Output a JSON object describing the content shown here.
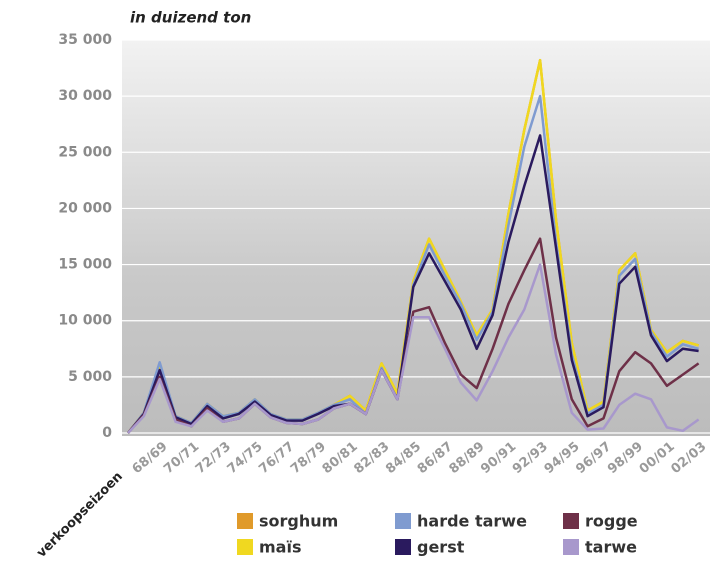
{
  "chart_data": {
    "type": "line",
    "title": "in duizend ton",
    "x_label": "verkoopseizoen",
    "categories": [
      null,
      null,
      "68/69",
      null,
      "70/71",
      null,
      "72/73",
      null,
      "74/75",
      null,
      "76/77",
      null,
      "78/79",
      null,
      "80/81",
      null,
      "82/83",
      null,
      "84/85",
      null,
      "86/87",
      null,
      "88/89",
      null,
      "90/91",
      null,
      "92/93",
      null,
      "94/95",
      null,
      "96/97",
      null,
      "98/99",
      null,
      "00/01",
      null,
      "02/03"
    ],
    "series": [
      {
        "name": "sorghum",
        "color": "#e09a2a",
        "values": [
          0,
          1800,
          6000,
          1500,
          900,
          2600,
          1500,
          1800,
          3000,
          1700,
          1200,
          1200,
          1800,
          2500,
          3300,
          2000,
          6200,
          3500,
          13500,
          17300,
          14500,
          11700,
          8700,
          11000,
          19500,
          27000,
          33200,
          19000,
          8000,
          2000,
          2800,
          14500,
          16000,
          9200,
          7200,
          8200,
          7800
        ]
      },
      {
        "name": "maïs",
        "color": "#f0d820",
        "values": [
          0,
          1800,
          6000,
          1500,
          900,
          2600,
          1500,
          1800,
          3000,
          1700,
          1200,
          1200,
          1800,
          2500,
          3300,
          2000,
          6200,
          3500,
          13500,
          17300,
          14500,
          11700,
          8700,
          11000,
          19500,
          27000,
          33200,
          19000,
          8000,
          2000,
          2800,
          14500,
          16000,
          9200,
          7200,
          8200,
          7800
        ]
      },
      {
        "name": "harde tarwe",
        "color": "#7f9bd0",
        "values": [
          0,
          1800,
          6300,
          1500,
          900,
          2600,
          1500,
          1800,
          3000,
          1700,
          1200,
          1200,
          1800,
          2500,
          3000,
          1700,
          5800,
          3000,
          13200,
          16800,
          14000,
          11500,
          8300,
          10800,
          18500,
          25500,
          30000,
          17000,
          7000,
          1700,
          2500,
          14000,
          15500,
          9000,
          6800,
          7900,
          7500
        ]
      },
      {
        "name": "gerst",
        "color": "#2a1a5e",
        "values": [
          0,
          1700,
          5600,
          1400,
          800,
          2400,
          1300,
          1700,
          2800,
          1600,
          1100,
          1100,
          1700,
          2400,
          2600,
          1700,
          5600,
          3000,
          13000,
          16000,
          13500,
          11000,
          7500,
          10500,
          17000,
          22000,
          26500,
          16500,
          6500,
          1500,
          2300,
          13300,
          14800,
          8700,
          6400,
          7500,
          7300
        ]
      },
      {
        "name": "rogge",
        "color": "#6e3048",
        "values": [
          0,
          1600,
          5000,
          1200,
          600,
          2200,
          1000,
          1300,
          2600,
          1400,
          900,
          800,
          1200,
          2200,
          2600,
          1700,
          5600,
          3000,
          10800,
          11200,
          8000,
          5200,
          4000,
          7500,
          11500,
          14500,
          17300,
          8500,
          3000,
          600,
          1300,
          5500,
          7200,
          6200,
          4200,
          5200,
          6200
        ]
      },
      {
        "name": "tarwe",
        "color": "#a898cc",
        "values": [
          0,
          1500,
          4800,
          1000,
          600,
          2000,
          1000,
          1300,
          2600,
          1400,
          900,
          800,
          1200,
          2200,
          2600,
          1700,
          5600,
          3000,
          10300,
          10300,
          7500,
          4500,
          2900,
          5500,
          8500,
          11000,
          15000,
          7000,
          1800,
          300,
          400,
          2500,
          3500,
          3000,
          500,
          200,
          1200
        ]
      }
    ],
    "ylim": [
      0,
      35000
    ],
    "yticks": [
      0,
      {
        "value": 5000,
        "label": "5 000"
      },
      {
        "value": 10000,
        "label": "10 000"
      },
      {
        "value": 15000,
        "label": "15 000"
      },
      {
        "value": 20000,
        "label": "20 000"
      },
      {
        "value": 25000,
        "label": "25 000"
      },
      {
        "value": 30000,
        "label": "30 000"
      },
      {
        "value": 35000,
        "label": "35 000"
      }
    ],
    "grid": true
  }
}
